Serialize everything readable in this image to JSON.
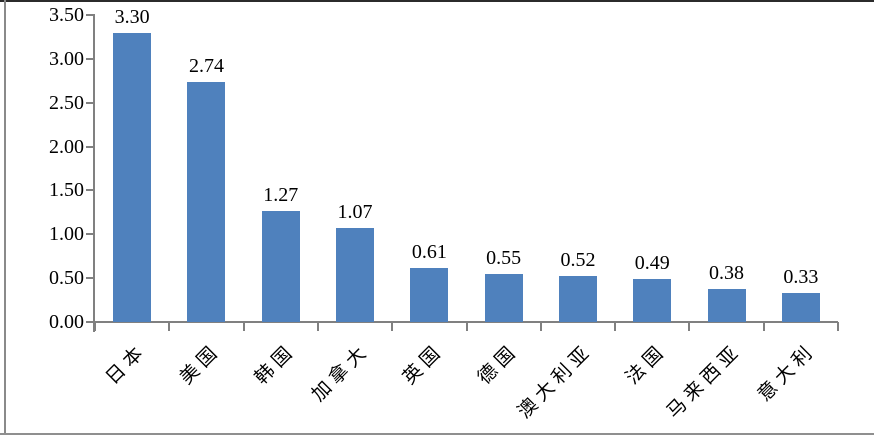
{
  "chart_data": {
    "type": "bar",
    "title": "",
    "xlabel": "",
    "ylabel": "",
    "categories": [
      "日本",
      "美国",
      "韩国",
      "加拿大",
      "英国",
      "德国",
      "澳大利亚",
      "法国",
      "马来西亚",
      "意大利"
    ],
    "values": [
      3.3,
      2.74,
      1.27,
      1.07,
      0.61,
      0.55,
      0.52,
      0.49,
      0.38,
      0.33
    ],
    "data_labels": [
      "3.30",
      "2.74",
      "1.27",
      "1.07",
      "0.61",
      "0.55",
      "0.52",
      "0.49",
      "0.38",
      "0.33"
    ],
    "y_tick_labels": [
      "3.50",
      "3.00",
      "2.50",
      "2.00",
      "1.50",
      "1.00",
      "0.50",
      "0.00"
    ],
    "ylim": [
      0.0,
      3.5
    ],
    "y_tick_step": 0.5,
    "grid": "off",
    "legend": "none",
    "bar_color": "#4F81BD",
    "axis_color": "#808080",
    "label_color": "#000000"
  }
}
